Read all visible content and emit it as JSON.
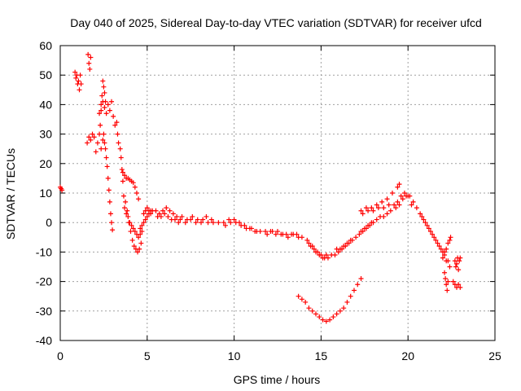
{
  "chart_data": {
    "type": "scatter",
    "title": "Day 040 of 2025, Sidereal Day-to-day VTEC variation (SDTVAR) for receiver ufcd",
    "xlabel": "GPS time / hours",
    "ylabel": "SDTVAR / TECUs",
    "xlim": [
      0,
      25
    ],
    "ylim": [
      -40,
      60
    ],
    "xticks": [
      0,
      5,
      10,
      15,
      20,
      25
    ],
    "yticks": [
      -40,
      -30,
      -20,
      -10,
      0,
      10,
      20,
      30,
      40,
      50,
      60
    ],
    "xtick_labels": [
      "0",
      "5",
      "10",
      "15",
      "20",
      "25"
    ],
    "ytick_labels": [
      "-40",
      "-30",
      "-20",
      "-10",
      "0",
      "10",
      "20",
      "30",
      "40",
      "50",
      "60"
    ],
    "grid": true,
    "marker": "+",
    "color": "#ff0000",
    "series": [
      {
        "name": "SDTVAR",
        "points": [
          [
            0.0,
            12
          ],
          [
            0.05,
            11.5
          ],
          [
            0.1,
            11
          ],
          [
            0.85,
            51
          ],
          [
            0.9,
            49
          ],
          [
            0.95,
            50
          ],
          [
            1.0,
            47
          ],
          [
            1.05,
            48
          ],
          [
            1.1,
            45
          ],
          [
            1.15,
            50
          ],
          [
            1.2,
            47
          ],
          [
            1.6,
            57
          ],
          [
            1.65,
            54
          ],
          [
            1.7,
            52
          ],
          [
            1.75,
            56
          ],
          [
            1.55,
            27
          ],
          [
            1.65,
            29
          ],
          [
            1.75,
            28
          ],
          [
            1.85,
            30
          ],
          [
            1.95,
            29
          ],
          [
            2.05,
            24
          ],
          [
            2.15,
            27
          ],
          [
            2.25,
            30
          ],
          [
            2.3,
            33
          ],
          [
            2.35,
            38
          ],
          [
            2.4,
            43
          ],
          [
            2.45,
            48
          ],
          [
            2.5,
            46
          ],
          [
            2.55,
            44
          ],
          [
            2.6,
            41
          ],
          [
            2.25,
            37
          ],
          [
            2.35,
            40
          ],
          [
            2.45,
            41
          ],
          [
            2.55,
            39
          ],
          [
            2.65,
            37
          ],
          [
            2.75,
            40
          ],
          [
            2.85,
            38
          ],
          [
            2.95,
            41
          ],
          [
            2.35,
            25
          ],
          [
            2.45,
            28
          ],
          [
            2.5,
            30
          ],
          [
            2.55,
            27
          ],
          [
            2.6,
            25
          ],
          [
            2.65,
            22
          ],
          [
            2.7,
            19
          ],
          [
            2.75,
            15
          ],
          [
            2.8,
            11
          ],
          [
            2.85,
            7
          ],
          [
            2.9,
            3
          ],
          [
            2.95,
            0
          ],
          [
            3.0,
            -2.5
          ],
          [
            3.05,
            36
          ],
          [
            3.15,
            33
          ],
          [
            3.25,
            34
          ],
          [
            3.3,
            30
          ],
          [
            3.35,
            27
          ],
          [
            3.45,
            25
          ],
          [
            3.5,
            22
          ],
          [
            3.55,
            18
          ],
          [
            3.6,
            14
          ],
          [
            3.6,
            17
          ],
          [
            3.7,
            16
          ],
          [
            3.8,
            15
          ],
          [
            3.9,
            15
          ],
          [
            4.0,
            14.5
          ],
          [
            4.1,
            14
          ],
          [
            4.2,
            13.5
          ],
          [
            4.3,
            12
          ],
          [
            4.4,
            10
          ],
          [
            4.5,
            8
          ],
          [
            3.65,
            9
          ],
          [
            3.75,
            7
          ],
          [
            3.85,
            4
          ],
          [
            3.95,
            0
          ],
          [
            4.05,
            -3
          ],
          [
            4.15,
            -6
          ],
          [
            4.25,
            -8
          ],
          [
            4.35,
            -9
          ],
          [
            4.45,
            -10
          ],
          [
            4.55,
            -9
          ],
          [
            4.65,
            -7
          ],
          [
            3.7,
            5
          ],
          [
            3.8,
            3
          ],
          [
            3.9,
            2
          ],
          [
            4.0,
            0
          ],
          [
            4.1,
            -1
          ],
          [
            4.2,
            -2
          ],
          [
            4.3,
            -3
          ],
          [
            4.4,
            -4
          ],
          [
            4.5,
            -5
          ],
          [
            4.6,
            -4
          ],
          [
            4.7,
            -3
          ],
          [
            4.6,
            -2
          ],
          [
            4.7,
            -1
          ],
          [
            4.8,
            0
          ],
          [
            4.9,
            1
          ],
          [
            5.0,
            2
          ],
          [
            5.1,
            3
          ],
          [
            5.2,
            4
          ],
          [
            5.3,
            4
          ],
          [
            4.8,
            3
          ],
          [
            4.9,
            4
          ],
          [
            5.0,
            5
          ],
          [
            5.1,
            4
          ],
          [
            5.2,
            3
          ],
          [
            5.5,
            4
          ],
          [
            5.7,
            3
          ],
          [
            5.9,
            4
          ],
          [
            6.1,
            5
          ],
          [
            6.3,
            4
          ],
          [
            6.5,
            3
          ],
          [
            6.7,
            2
          ],
          [
            6.9,
            1
          ],
          [
            5.6,
            2
          ],
          [
            5.8,
            2
          ],
          [
            6.0,
            3
          ],
          [
            6.2,
            2
          ],
          [
            6.4,
            1
          ],
          [
            6.6,
            1
          ],
          [
            6.8,
            0
          ],
          [
            7.0,
            2
          ],
          [
            7.3,
            1
          ],
          [
            7.6,
            2
          ],
          [
            7.9,
            1
          ],
          [
            8.2,
            1
          ],
          [
            8.5,
            0
          ],
          [
            8.8,
            0
          ],
          [
            9.1,
            0
          ],
          [
            7.2,
            0
          ],
          [
            7.5,
            1
          ],
          [
            7.8,
            0
          ],
          [
            8.1,
            0
          ],
          [
            8.4,
            2
          ],
          [
            8.7,
            1
          ],
          [
            9.4,
            0
          ],
          [
            9.7,
            1
          ],
          [
            10.0,
            1
          ],
          [
            10.3,
            0
          ],
          [
            10.6,
            -1
          ],
          [
            10.9,
            -2
          ],
          [
            11.2,
            -3
          ],
          [
            11.5,
            -3
          ],
          [
            9.5,
            -1
          ],
          [
            9.8,
            0
          ],
          [
            10.1,
            0
          ],
          [
            10.4,
            -1
          ],
          [
            10.7,
            -2
          ],
          [
            11.0,
            -2
          ],
          [
            11.3,
            -3
          ],
          [
            11.8,
            -3
          ],
          [
            12.1,
            -3
          ],
          [
            12.4,
            -4
          ],
          [
            12.7,
            -4
          ],
          [
            13.0,
            -4
          ],
          [
            13.3,
            -4
          ],
          [
            13.6,
            -4
          ],
          [
            13.9,
            -5
          ],
          [
            11.9,
            -4
          ],
          [
            12.2,
            -3
          ],
          [
            12.5,
            -3
          ],
          [
            12.8,
            -4
          ],
          [
            13.1,
            -5
          ],
          [
            13.4,
            -4
          ],
          [
            13.7,
            -5
          ],
          [
            14.2,
            -6
          ],
          [
            14.4,
            -8
          ],
          [
            14.6,
            -9
          ],
          [
            14.8,
            -10
          ],
          [
            15.0,
            -11
          ],
          [
            15.2,
            -12
          ],
          [
            15.4,
            -12
          ],
          [
            15.6,
            -11
          ],
          [
            14.3,
            -7
          ],
          [
            14.5,
            -8
          ],
          [
            14.7,
            -10
          ],
          [
            14.9,
            -11
          ],
          [
            15.1,
            -12
          ],
          [
            15.3,
            -11
          ],
          [
            15.8,
            -11
          ],
          [
            16.0,
            -10
          ],
          [
            16.2,
            -9
          ],
          [
            16.4,
            -8
          ],
          [
            16.6,
            -7
          ],
          [
            16.8,
            -6
          ],
          [
            17.0,
            -5
          ],
          [
            15.9,
            -9
          ],
          [
            16.1,
            -9
          ],
          [
            16.3,
            -8
          ],
          [
            16.5,
            -7
          ],
          [
            16.7,
            -6
          ],
          [
            17.2,
            -4
          ],
          [
            17.4,
            -3
          ],
          [
            17.6,
            -2
          ],
          [
            17.8,
            -1
          ],
          [
            18.0,
            0
          ],
          [
            18.2,
            1
          ],
          [
            18.4,
            2
          ],
          [
            18.6,
            2
          ],
          [
            18.8,
            3
          ],
          [
            17.3,
            -3
          ],
          [
            17.5,
            -2
          ],
          [
            17.7,
            -1
          ],
          [
            17.9,
            0
          ],
          [
            17.3,
            4
          ],
          [
            17.6,
            5
          ],
          [
            17.9,
            5
          ],
          [
            18.2,
            6
          ],
          [
            18.5,
            7
          ],
          [
            18.8,
            8
          ],
          [
            19.1,
            10
          ],
          [
            19.4,
            12
          ],
          [
            19.5,
            13
          ],
          [
            17.4,
            3
          ],
          [
            17.7,
            4
          ],
          [
            18.0,
            4
          ],
          [
            18.3,
            5
          ],
          [
            18.6,
            5
          ],
          [
            18.9,
            6
          ],
          [
            19.0,
            4
          ],
          [
            19.3,
            5
          ],
          [
            19.5,
            6
          ],
          [
            19.7,
            8
          ],
          [
            19.9,
            9
          ],
          [
            20.1,
            9
          ],
          [
            20.3,
            7
          ],
          [
            20.5,
            5
          ],
          [
            19.2,
            6
          ],
          [
            19.4,
            7
          ],
          [
            19.6,
            9
          ],
          [
            19.8,
            10
          ],
          [
            20.0,
            9
          ],
          [
            20.2,
            6
          ],
          [
            20.7,
            3
          ],
          [
            20.9,
            1
          ],
          [
            21.1,
            -1
          ],
          [
            21.3,
            -3
          ],
          [
            21.5,
            -5
          ],
          [
            21.7,
            -7
          ],
          [
            21.9,
            -9
          ],
          [
            22.1,
            -11
          ],
          [
            22.3,
            -13
          ],
          [
            20.8,
            2
          ],
          [
            21.0,
            0
          ],
          [
            21.2,
            -2
          ],
          [
            21.4,
            -4
          ],
          [
            21.6,
            -6
          ],
          [
            21.8,
            -8
          ],
          [
            22.0,
            -10
          ],
          [
            22.2,
            -13
          ],
          [
            22.4,
            -15
          ],
          [
            22.0,
            -12
          ],
          [
            22.1,
            -10
          ],
          [
            22.2,
            -9
          ],
          [
            22.3,
            -7
          ],
          [
            22.4,
            -6
          ],
          [
            22.45,
            -5
          ],
          [
            22.1,
            -17
          ],
          [
            22.15,
            -19
          ],
          [
            22.2,
            -21
          ],
          [
            22.25,
            -23
          ],
          [
            22.3,
            -20
          ],
          [
            22.6,
            -20
          ],
          [
            22.7,
            -21
          ],
          [
            22.8,
            -22
          ],
          [
            22.9,
            -21
          ],
          [
            23.0,
            -22
          ],
          [
            22.7,
            -13
          ],
          [
            22.75,
            -15
          ],
          [
            22.8,
            -14
          ],
          [
            22.85,
            -12
          ],
          [
            22.9,
            -16
          ],
          [
            22.95,
            -13
          ],
          [
            23.0,
            -12
          ],
          [
            13.7,
            -25
          ],
          [
            13.9,
            -26
          ],
          [
            14.1,
            -27
          ],
          [
            14.3,
            -29
          ],
          [
            14.5,
            -30
          ],
          [
            14.7,
            -31
          ],
          [
            14.9,
            -32
          ],
          [
            15.1,
            -33
          ],
          [
            15.3,
            -33.5
          ],
          [
            15.5,
            -33
          ],
          [
            15.7,
            -32
          ],
          [
            15.9,
            -31
          ],
          [
            16.1,
            -30
          ],
          [
            16.3,
            -29
          ],
          [
            16.5,
            -27
          ],
          [
            16.7,
            -25
          ],
          [
            16.9,
            -23
          ],
          [
            17.1,
            -21
          ],
          [
            17.3,
            -19
          ]
        ]
      }
    ]
  }
}
